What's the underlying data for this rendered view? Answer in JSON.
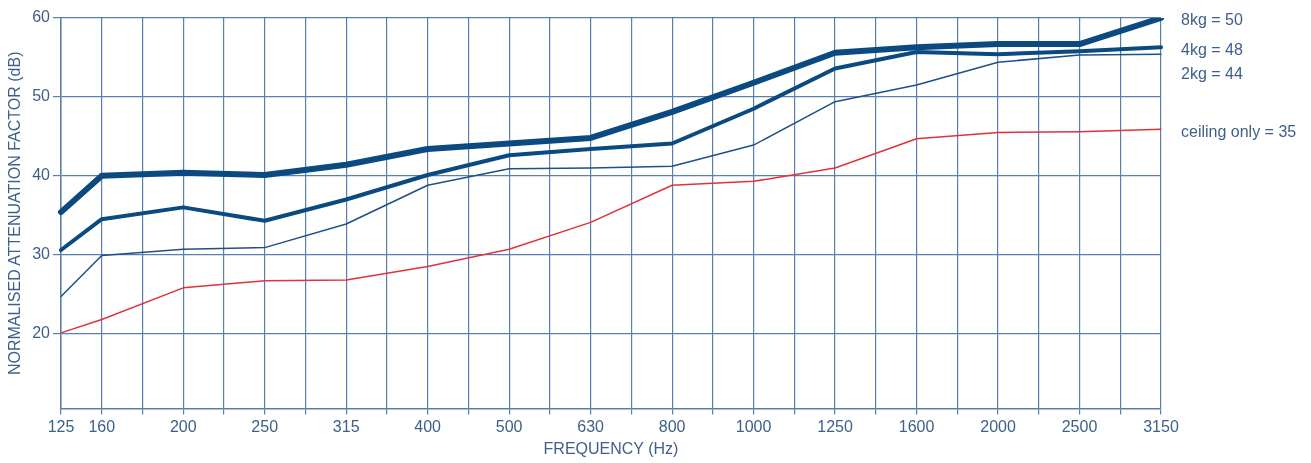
{
  "chart_data": {
    "type": "line",
    "xlabel": "FREQUENCY (Hz)",
    "ylabel": "NORMALISED ATTENUATION FACTOR (dB)",
    "categories": [
      "125",
      "160",
      null,
      "200",
      null,
      "250",
      null,
      "315",
      null,
      "400",
      null,
      "500",
      null,
      "630",
      null,
      "800",
      null,
      "1000",
      null,
      "1250",
      null,
      "1600",
      null,
      "2000",
      null,
      "2500",
      null,
      "3150"
    ],
    "series": [
      {
        "name": "8kg = 50",
        "color": "#0a4a80",
        "values": [
          35.4,
          40,
          null,
          40.4,
          null,
          40.1,
          null,
          41.4,
          null,
          43.4,
          null,
          44.1,
          null,
          44.8,
          null,
          48.1,
          null,
          51.8,
          null,
          55.6,
          null,
          56.3,
          null,
          56.7,
          null,
          56.7,
          null,
          60
        ]
      },
      {
        "name": "4kg = 48",
        "color": "#0a4a80",
        "values": [
          30.6,
          34.5,
          null,
          36,
          null,
          34.3,
          null,
          37,
          null,
          40.1,
          null,
          42.6,
          null,
          43.4,
          null,
          44.1,
          null,
          48.5,
          null,
          53.6,
          null,
          55.7,
          null,
          55.4,
          null,
          55.8,
          null,
          56.3
        ]
      },
      {
        "name": "2kg = 44",
        "color": "#1e4f86",
        "values": [
          24.7,
          29.9,
          null,
          30.7,
          null,
          30.9,
          null,
          33.9,
          null,
          38.8,
          null,
          40.9,
          null,
          41,
          null,
          41.2,
          null,
          43.9,
          null,
          49.4,
          null,
          51.5,
          null,
          54.4,
          null,
          55.3,
          null,
          55.4
        ]
      },
      {
        "name": "ceiling only = 35",
        "color": "#e0323a",
        "values": [
          20.1,
          21.8,
          null,
          25.8,
          null,
          26.7,
          null,
          26.8,
          null,
          28.5,
          null,
          30.7,
          null,
          34.1,
          null,
          38.8,
          null,
          39.3,
          null,
          41,
          null,
          44.7,
          null,
          45.5,
          null,
          45.6,
          null,
          45.9
        ]
      }
    ],
    "ylim": [
      10.5,
      60
    ],
    "yticks": [
      20,
      30,
      40,
      50,
      60
    ],
    "grid": true,
    "legend": false,
    "marker": "none",
    "line_style": "solid"
  }
}
